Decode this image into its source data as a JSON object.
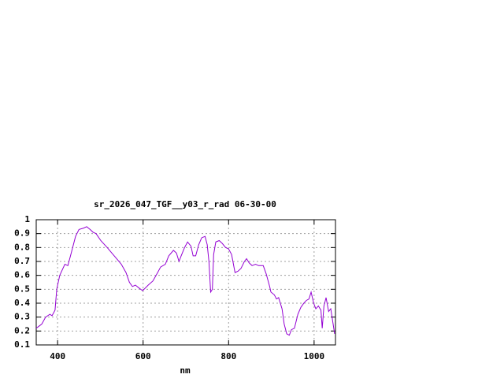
{
  "chart_data": {
    "type": "line",
    "title": "sr_2026_047_TGF__y03_r_rad 06-30-00",
    "x_label": "nm",
    "x": [
      350,
      363,
      372,
      382,
      387,
      394,
      398,
      405,
      417,
      424,
      431,
      442,
      450,
      461,
      468,
      476,
      483,
      490,
      501,
      516,
      527,
      538,
      549,
      560,
      568,
      575,
      582,
      590,
      599,
      612,
      623,
      634,
      641,
      652,
      660,
      671,
      678,
      684,
      689,
      697,
      704,
      712,
      717,
      723,
      730,
      737,
      745,
      750,
      754,
      758,
      762,
      765,
      770,
      778,
      785,
      793,
      800,
      807,
      815,
      822,
      829,
      837,
      842,
      848,
      855,
      863,
      870,
      881,
      888,
      896,
      899,
      907,
      912,
      917,
      925,
      930,
      936,
      942,
      947,
      954,
      962,
      969,
      976,
      982,
      988,
      993,
      999,
      1004,
      1010,
      1016,
      1019,
      1023,
      1028,
      1034,
      1039,
      1048
    ],
    "series": [
      {
        "name": "sr_2026_047_TGF__y03_r_rad",
        "color": "#9400d3",
        "values": [
          0.22,
          0.25,
          0.3,
          0.32,
          0.31,
          0.35,
          0.5,
          0.6,
          0.68,
          0.67,
          0.75,
          0.88,
          0.93,
          0.94,
          0.95,
          0.93,
          0.91,
          0.9,
          0.85,
          0.8,
          0.76,
          0.72,
          0.68,
          0.62,
          0.55,
          0.52,
          0.53,
          0.51,
          0.49,
          0.53,
          0.56,
          0.62,
          0.66,
          0.68,
          0.74,
          0.78,
          0.76,
          0.7,
          0.74,
          0.8,
          0.84,
          0.81,
          0.74,
          0.74,
          0.82,
          0.87,
          0.88,
          0.82,
          0.7,
          0.48,
          0.5,
          0.75,
          0.84,
          0.85,
          0.83,
          0.8,
          0.79,
          0.75,
          0.62,
          0.63,
          0.65,
          0.7,
          0.72,
          0.69,
          0.67,
          0.68,
          0.67,
          0.67,
          0.61,
          0.52,
          0.48,
          0.46,
          0.43,
          0.44,
          0.36,
          0.25,
          0.18,
          0.17,
          0.21,
          0.22,
          0.32,
          0.37,
          0.4,
          0.42,
          0.43,
          0.48,
          0.4,
          0.36,
          0.38,
          0.35,
          0.22,
          0.38,
          0.44,
          0.34,
          0.36,
          0.18
        ]
      }
    ],
    "xlim": [
      350,
      1050
    ],
    "ylim": [
      0.1,
      1
    ],
    "xticks": [
      400,
      600,
      800,
      1000
    ],
    "yticks": [
      0.1,
      0.2,
      0.3,
      0.4,
      0.5,
      0.6,
      0.7,
      0.8,
      0.9,
      1
    ],
    "grid": true
  }
}
